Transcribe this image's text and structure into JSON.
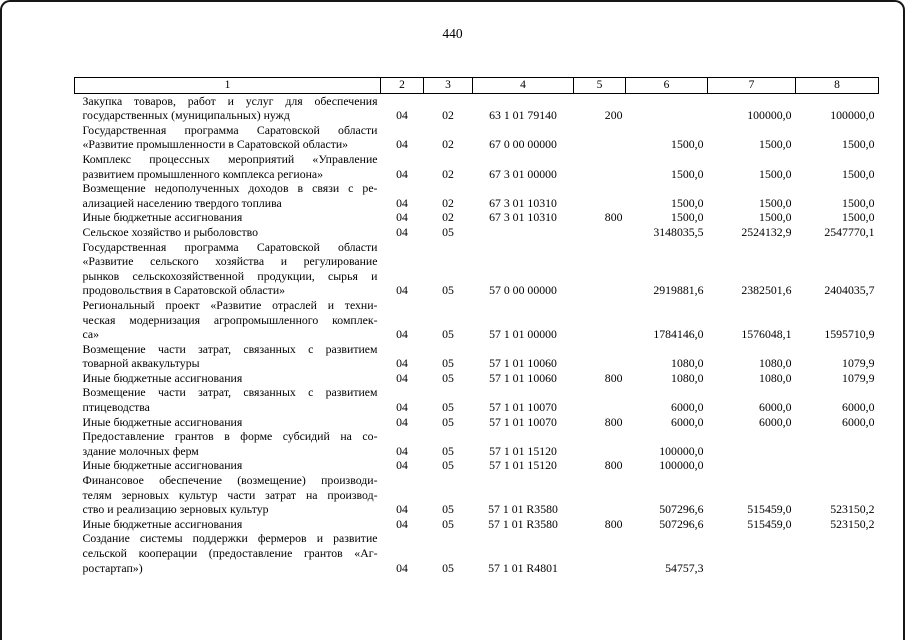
{
  "page": {
    "number": "440"
  },
  "table": {
    "columns": [
      "1",
      "2",
      "3",
      "4",
      "5",
      "6",
      "7",
      "8"
    ],
    "rows": [
      {
        "name_lines": [
          "Закупка товаров, работ и услуг для обеспечения",
          "государственных (муниципальных) нужд"
        ],
        "values": [
          "04",
          "02",
          "63 1 01 79140",
          "200",
          "",
          "100000,0",
          "100000,0"
        ]
      },
      {
        "name_lines": [
          "Государственная программа Саратовской области",
          "«Развитие промышленности в Саратовской области»"
        ],
        "values": [
          "04",
          "02",
          "67 0 00 00000",
          "",
          "1500,0",
          "1500,0",
          "1500,0"
        ]
      },
      {
        "name_lines": [
          "Комплекс процессных мероприятий «Управление",
          "развитием промышленного комплекса региона»"
        ],
        "values": [
          "04",
          "02",
          "67 3 01 00000",
          "",
          "1500,0",
          "1500,0",
          "1500,0"
        ]
      },
      {
        "name_lines": [
          "Возмещение недополученных доходов в связи с ре-",
          "ализацией населению твердого топлива"
        ],
        "values": [
          "04",
          "02",
          "67 3 01 10310",
          "",
          "1500,0",
          "1500,0",
          "1500,0"
        ]
      },
      {
        "name_lines": [
          "Иные бюджетные ассигнования"
        ],
        "values": [
          "04",
          "02",
          "67 3 01 10310",
          "800",
          "1500,0",
          "1500,0",
          "1500,0"
        ]
      },
      {
        "name_lines": [
          "Сельское хозяйство и рыболовство"
        ],
        "values": [
          "04",
          "05",
          "",
          "",
          "3148035,5",
          "2524132,9",
          "2547770,1"
        ]
      },
      {
        "name_lines": [
          "Государственная программа Саратовской области",
          "«Развитие сельского хозяйства и регулирование",
          "рынков сельскохозяйственной продукции, сырья и",
          "продовольствия в Саратовской области»"
        ],
        "values": [
          "04",
          "05",
          "57 0 00 00000",
          "",
          "2919881,6",
          "2382501,6",
          "2404035,7"
        ]
      },
      {
        "name_lines": [
          "Региональный проект «Развитие отраслей и техни-",
          "ческая модернизация агропромышленного комплек-",
          "са»"
        ],
        "values": [
          "04",
          "05",
          "57 1 01 00000",
          "",
          "1784146,0",
          "1576048,1",
          "1595710,9"
        ]
      },
      {
        "name_lines": [
          "Возмещение части затрат, связанных с развитием",
          "товарной аквакультуры"
        ],
        "values": [
          "04",
          "05",
          "57 1 01 10060",
          "",
          "1080,0",
          "1080,0",
          "1079,9"
        ]
      },
      {
        "name_lines": [
          "Иные бюджетные ассигнования"
        ],
        "values": [
          "04",
          "05",
          "57 1 01 10060",
          "800",
          "1080,0",
          "1080,0",
          "1079,9"
        ]
      },
      {
        "name_lines": [
          "Возмещение части затрат, связанных с развитием",
          "птицеводства"
        ],
        "values": [
          "04",
          "05",
          "57 1 01 10070",
          "",
          "6000,0",
          "6000,0",
          "6000,0"
        ]
      },
      {
        "name_lines": [
          "Иные бюджетные ассигнования"
        ],
        "values": [
          "04",
          "05",
          "57 1 01 10070",
          "800",
          "6000,0",
          "6000,0",
          "6000,0"
        ]
      },
      {
        "name_lines": [
          "Предоставление грантов в форме субсидий на со-",
          "здание молочных ферм"
        ],
        "values": [
          "04",
          "05",
          "57 1 01 15120",
          "",
          "100000,0",
          "",
          ""
        ]
      },
      {
        "name_lines": [
          "Иные бюджетные ассигнования"
        ],
        "values": [
          "04",
          "05",
          "57 1 01 15120",
          "800",
          "100000,0",
          "",
          ""
        ]
      },
      {
        "name_lines": [
          "Финансовое обеспечение (возмещение) производи-",
          "телям зерновых культур части затрат на производ-",
          "ство и реализацию зерновых культур"
        ],
        "values": [
          "04",
          "05",
          "57 1 01 R3580",
          "",
          "507296,6",
          "515459,0",
          "523150,2"
        ]
      },
      {
        "name_lines": [
          "Иные бюджетные ассигнования"
        ],
        "values": [
          "04",
          "05",
          "57 1 01 R3580",
          "800",
          "507296,6",
          "515459,0",
          "523150,2"
        ]
      },
      {
        "name_lines": [
          "Создание системы поддержки фермеров и развитие",
          "сельской кооперации (предоставление грантов «Аг-",
          "ростартап»)"
        ],
        "values": [
          "04",
          "05",
          "57 1 01 R4801",
          "",
          "54757,3",
          "",
          ""
        ]
      }
    ]
  }
}
